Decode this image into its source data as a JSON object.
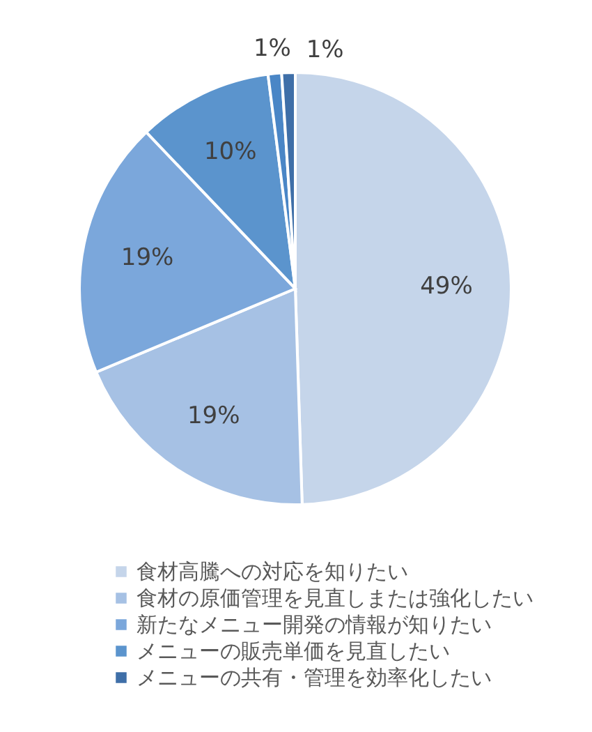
{
  "chart_data": {
    "type": "pie",
    "categories": [
      "食材高騰への対応を知りたい",
      "食材の原価管理を見直しまたは強化したい",
      "新たなメニュー開発の情報が知りたい",
      "メニューの販売単価を見直したい",
      null,
      "メニューの共有・管理を効率化したい"
    ],
    "values": [
      49,
      19,
      19,
      10,
      1,
      1
    ],
    "colors": [
      "#c5d5ea",
      "#a6c1e4",
      "#7ba7db",
      "#5b94cd",
      "#4a86c6",
      "#3f6fa8"
    ],
    "value_labels": [
      "49%",
      "19%",
      "19%",
      "10%",
      "1%",
      "1%"
    ],
    "legend": "bottom"
  }
}
